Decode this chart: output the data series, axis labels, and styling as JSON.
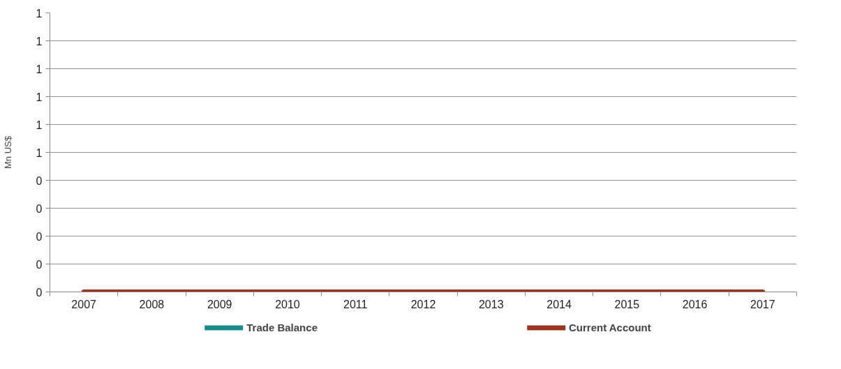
{
  "chart_data": {
    "type": "line",
    "ylabel": "Mn US$",
    "categories": [
      "2007",
      "2008",
      "2009",
      "2010",
      "2011",
      "2012",
      "2013",
      "2014",
      "2015",
      "2016",
      "2017"
    ],
    "series": [
      {
        "name": "Trade Balance",
        "color": "#1a8a8a",
        "values": [
          null,
          null,
          null,
          null,
          null,
          null,
          null,
          null,
          null,
          null,
          null
        ]
      },
      {
        "name": "Current Account",
        "color": "#9b3520",
        "values": [
          0,
          0,
          0,
          0,
          0,
          0,
          0,
          0,
          0,
          0,
          0
        ]
      }
    ],
    "ylim": [
      0,
      1
    ],
    "yticks": [
      {
        "value": 0,
        "label": "0"
      },
      {
        "value": 0.1,
        "label": "0"
      },
      {
        "value": 0.2,
        "label": "0"
      },
      {
        "value": 0.3,
        "label": "0"
      },
      {
        "value": 0.4,
        "label": "0"
      },
      {
        "value": 0.5,
        "label": "1"
      },
      {
        "value": 0.6,
        "label": "1"
      },
      {
        "value": 0.7,
        "label": "1"
      },
      {
        "value": 0.8,
        "label": "1"
      },
      {
        "value": 0.9,
        "label": "1"
      },
      {
        "value": 1,
        "label": "1"
      }
    ],
    "grid": "y",
    "legend": "bottom",
    "marker": "none",
    "line_style": "solid"
  }
}
